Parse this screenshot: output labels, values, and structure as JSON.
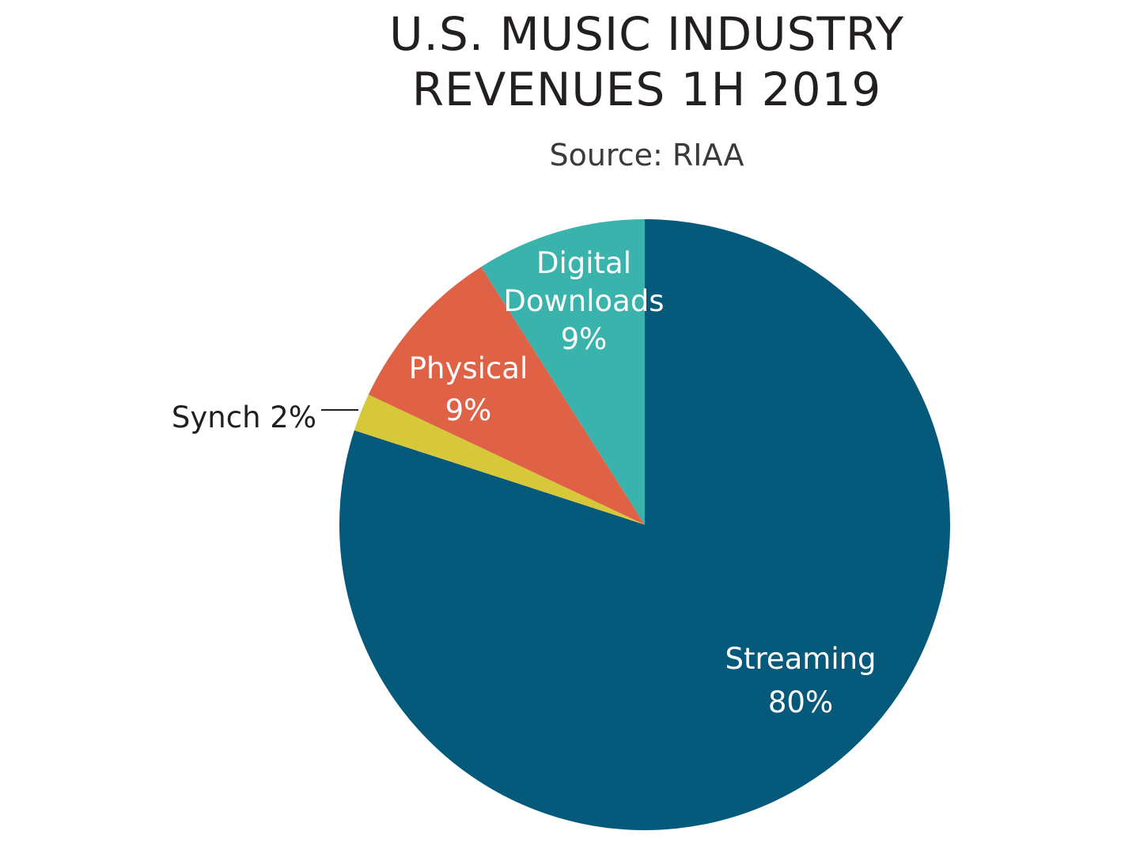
{
  "chart_data": {
    "type": "pie",
    "title": [
      "U.S. MUSIC INDUSTRY",
      "REVENUES 1H 2019"
    ],
    "subtitle": "Source: RIAA",
    "slices": [
      {
        "name": "Streaming",
        "value": 80,
        "label_lines": [
          "Streaming",
          "80%"
        ],
        "color": "#05597b",
        "label_color": "#ffffff"
      },
      {
        "name": "Synch",
        "value": 2,
        "label_lines": [
          "Synch 2%"
        ],
        "color": "#d7c83a",
        "label_color": "#231f20"
      },
      {
        "name": "Physical",
        "value": 9,
        "label_lines": [
          "Physical",
          "9%"
        ],
        "color": "#df6146",
        "label_color": "#ffffff"
      },
      {
        "name": "Digital Downloads",
        "value": 9,
        "label_lines": [
          "Digital",
          "Downloads",
          "9%"
        ],
        "color": "#3bb3ad",
        "label_color": "#ffffff"
      }
    ]
  }
}
